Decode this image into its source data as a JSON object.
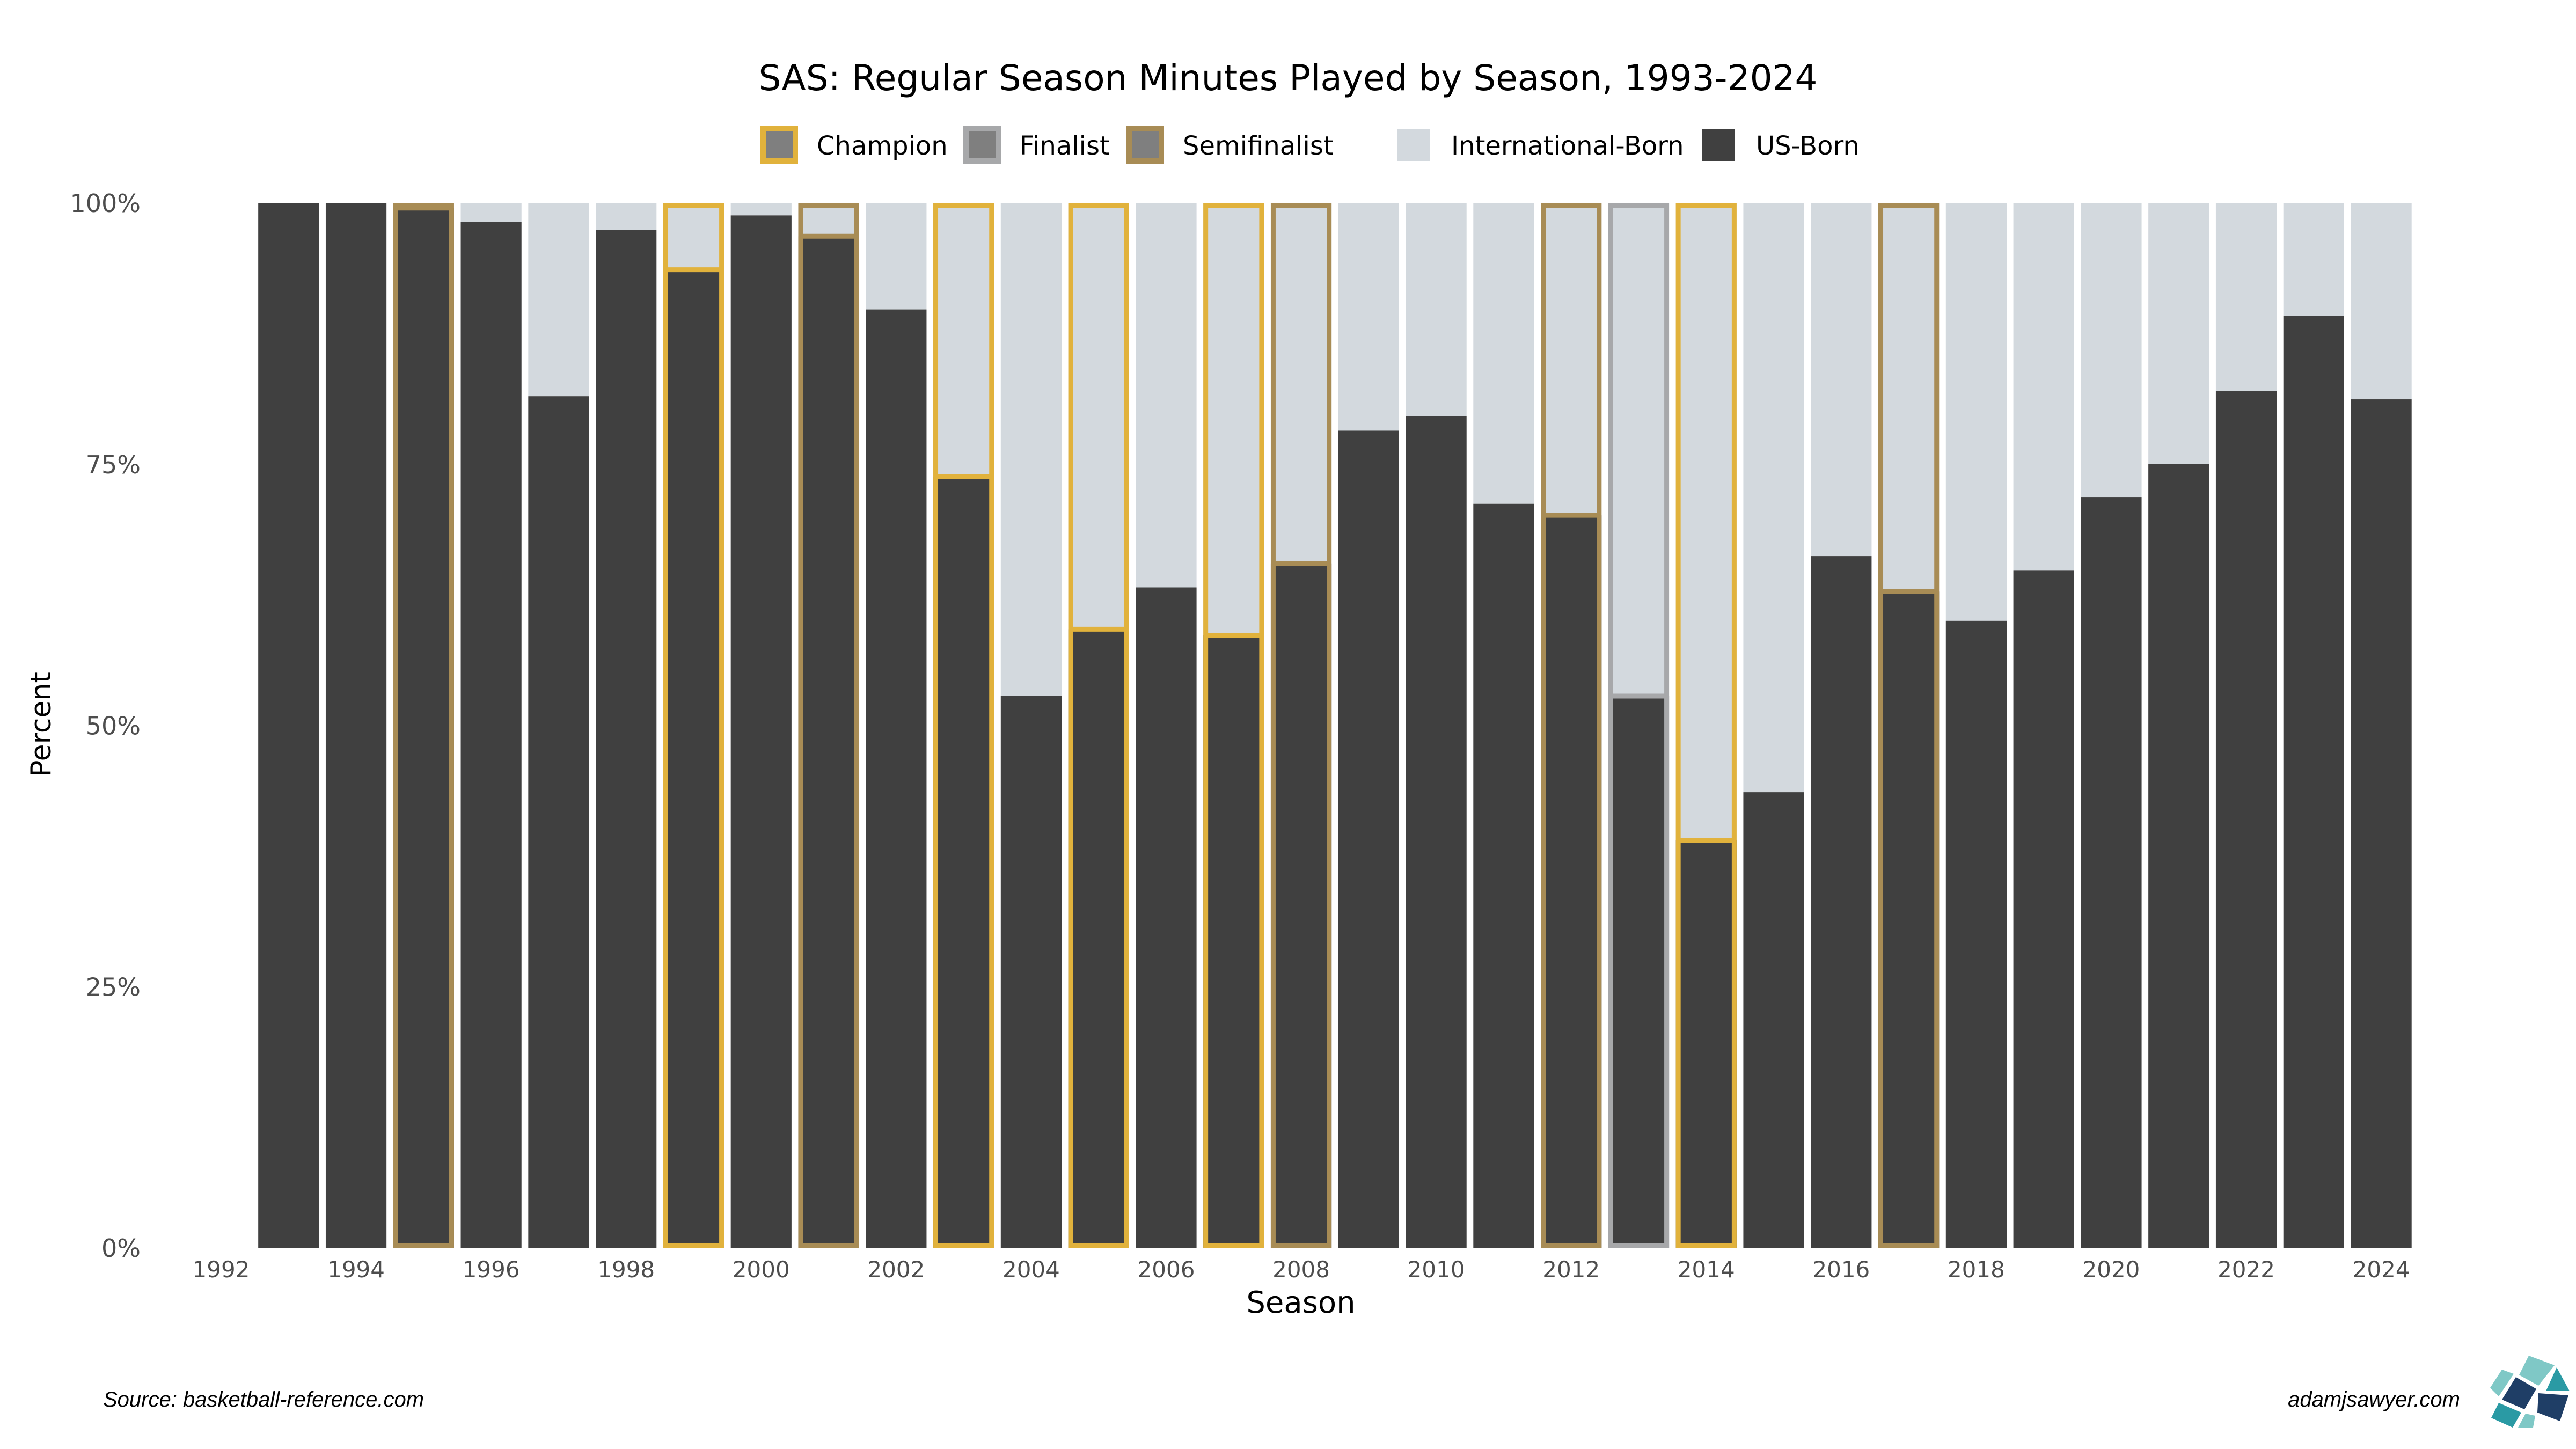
{
  "chart_data": {
    "type": "bar",
    "title": "SAS: Regular Season Minutes Played by Season, 1993-2024",
    "xlabel": "Season",
    "ylabel": "Percent",
    "ylim": [
      0,
      100
    ],
    "yticks": [
      0,
      25,
      50,
      75,
      100
    ],
    "ytick_labels": [
      "0%",
      "25%",
      "50%",
      "75%",
      "100%"
    ],
    "xlim": [
      1992,
      2024
    ],
    "xticks": [
      "1992",
      "1994",
      "1996",
      "1998",
      "2000",
      "2002",
      "2004",
      "2006",
      "2008",
      "2010",
      "2012",
      "2014",
      "2016",
      "2018",
      "2020",
      "2022",
      "2024"
    ],
    "grid": false,
    "stacked": true,
    "legend_position": "top",
    "legend_outcome": [
      {
        "label": "Champion",
        "color": "#E1B23C"
      },
      {
        "label": "Finalist",
        "color": "#A7A8AA"
      },
      {
        "label": "Semifinalist",
        "color": "#A88C55"
      }
    ],
    "legend_series": [
      {
        "label": "International-Born",
        "color": "#D3D9DE"
      },
      {
        "label": "US-Born",
        "color": "#404040"
      }
    ],
    "seasons": [
      1993,
      1994,
      1995,
      1996,
      1997,
      1998,
      1999,
      2000,
      2001,
      2002,
      2003,
      2004,
      2005,
      2006,
      2007,
      2008,
      2009,
      2010,
      2011,
      2012,
      2013,
      2014,
      2015,
      2016,
      2017,
      2018,
      2019,
      2020,
      2021,
      2022,
      2023,
      2024
    ],
    "series": [
      {
        "name": "US-Born",
        "values": [
          100,
          100,
          99.5,
          98.2,
          81.5,
          97.4,
          93.6,
          98.8,
          96.8,
          89.8,
          73.8,
          52.8,
          59.2,
          63.2,
          58.6,
          65.5,
          78.2,
          79.6,
          71.2,
          70.1,
          52.8,
          39.0,
          43.6,
          66.2,
          62.8,
          60.0,
          64.8,
          71.8,
          75.0,
          82.0,
          89.2,
          81.2
        ]
      },
      {
        "name": "International-Born",
        "values": [
          0,
          0,
          0.5,
          1.8,
          18.5,
          2.6,
          6.4,
          1.2,
          3.2,
          10.2,
          26.2,
          47.2,
          40.8,
          36.8,
          41.4,
          34.5,
          21.8,
          20.4,
          28.8,
          29.9,
          47.2,
          61.0,
          56.4,
          33.8,
          37.2,
          40.0,
          35.2,
          28.2,
          25.0,
          18.0,
          10.8,
          18.8
        ]
      }
    ],
    "outcomes": [
      "",
      "",
      "Semifinalist",
      "",
      "",
      "",
      "Champion",
      "",
      "Semifinalist",
      "",
      "Champion",
      "",
      "Champion",
      "",
      "Champion",
      "Semifinalist",
      "",
      "",
      "",
      "Semifinalist",
      "Finalist",
      "Champion",
      "",
      "",
      "Semifinalist",
      "",
      "",
      "",
      "",
      "",
      "",
      ""
    ]
  },
  "footer": {
    "source": "Source: basketball-reference.com",
    "credit": "adamjsawyer.com"
  }
}
